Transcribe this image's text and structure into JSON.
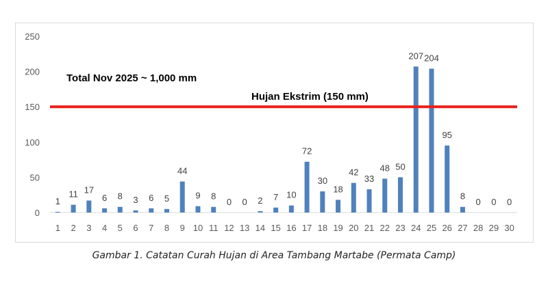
{
  "chart_data": {
    "type": "bar",
    "categories": [
      "1",
      "2",
      "3",
      "4",
      "5",
      "6",
      "7",
      "8",
      "9",
      "10",
      "11",
      "12",
      "13",
      "14",
      "15",
      "16",
      "17",
      "18",
      "19",
      "20",
      "21",
      "22",
      "23",
      "24",
      "25",
      "26",
      "27",
      "28",
      "29",
      "30"
    ],
    "values": [
      1,
      11,
      17,
      6,
      8,
      3,
      6,
      5,
      44,
      9,
      8,
      0,
      0,
      2,
      7,
      10,
      72,
      30,
      18,
      42,
      33,
      48,
      50,
      207,
      204,
      95,
      8,
      0,
      0,
      0
    ],
    "ylim": [
      0,
      250
    ],
    "yticks": [
      0,
      50,
      100,
      150,
      200,
      250
    ],
    "grid": false,
    "legend": "none",
    "bar_color": "#4f81bd",
    "annotations": {
      "total": "Total Nov 2025 ~ 1,000 mm",
      "threshold_label": "Hujan Ekstrim (150 mm)"
    },
    "threshold": {
      "value": 150,
      "color": "#e8201a"
    }
  },
  "caption": "Gambar 1. Catatan Curah Hujan di Area Tambang Martabe (Permata Camp)"
}
